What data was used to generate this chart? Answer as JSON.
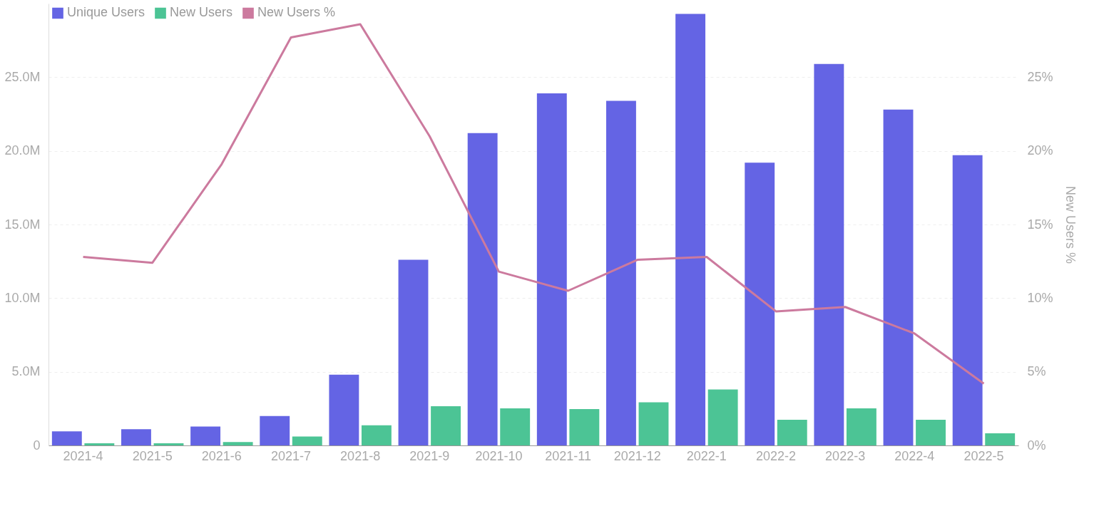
{
  "chart_data": {
    "type": "bar",
    "y2label": "New Users %",
    "categories": [
      "2021-4",
      "2021-5",
      "2021-6",
      "2021-7",
      "2021-8",
      "2021-9",
      "2021-10",
      "2021-11",
      "2021-12",
      "2022-1",
      "2022-2",
      "2022-3",
      "2022-4",
      "2022-5"
    ],
    "series": [
      {
        "name": "Unique Users",
        "color": "#6464e4",
        "values": [
          960000,
          1100000,
          1280000,
          2000000,
          4800000,
          12600000,
          21200000,
          23900000,
          23400000,
          29300000,
          19200000,
          25900000,
          22800000,
          19700000
        ]
      },
      {
        "name": "New Users",
        "color": "#4cc495",
        "values": [
          140000,
          140000,
          230000,
          600000,
          1370000,
          2660000,
          2520000,
          2470000,
          2930000,
          3800000,
          1740000,
          2520000,
          1740000,
          820000
        ]
      },
      {
        "name": "New Users %",
        "type": "line",
        "axis": "y2",
        "color": "#cc7a9e",
        "values": [
          12.8,
          12.4,
          19.1,
          27.7,
          28.6,
          21.0,
          11.8,
          10.5,
          12.6,
          12.8,
          9.1,
          9.4,
          7.6,
          4.2
        ]
      }
    ],
    "ylim": [
      0,
      30000000
    ],
    "yticks": [
      0,
      {
        "value": 5000000,
        "label": "5.0M"
      },
      {
        "value": 10000000,
        "label": "10.0M"
      },
      {
        "value": 15000000,
        "label": "15.0M"
      },
      {
        "value": 20000000,
        "label": "20.0M"
      },
      {
        "value": 25000000,
        "label": "25.0M"
      }
    ],
    "y2lim": [
      0,
      30
    ],
    "y2ticks": [
      {
        "value": 0,
        "label": "0%"
      },
      {
        "value": 5,
        "label": "5%"
      },
      {
        "value": 10,
        "label": "10%"
      },
      {
        "value": 15,
        "label": "15%"
      },
      {
        "value": 20,
        "label": "20%"
      },
      {
        "value": 25,
        "label": "25%"
      }
    ],
    "grid": "y",
    "legend": "top left",
    "marker": "none"
  }
}
